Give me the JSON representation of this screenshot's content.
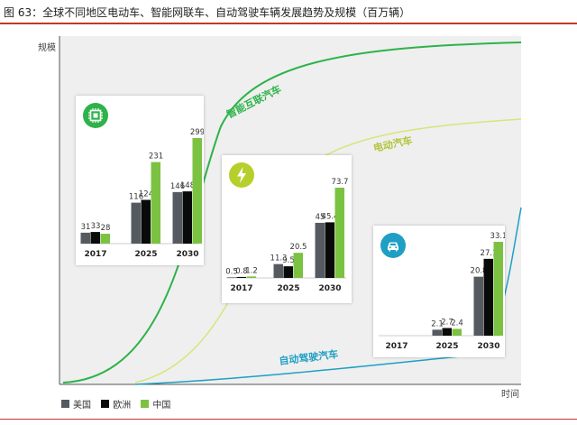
{
  "figure_title": "图 63：全球不同地区电动车、智能网联车、自动驾驶车辆发展趋势及规模（百万辆）",
  "chart_data": {
    "type": "bar",
    "ylabel": "规模",
    "xlabel": "时间",
    "curves": [
      {
        "name": "智能互联汽车",
        "color": "#2db34a"
      },
      {
        "name": "电动汽车",
        "color": "#c9dc4a"
      },
      {
        "name": "自动驾驶汽车",
        "color": "#1f9fc4"
      }
    ],
    "legend": [
      {
        "name": "美国",
        "color": "#555a61"
      },
      {
        "name": "欧洲",
        "color": "#0a0a0a"
      },
      {
        "name": "中国",
        "color": "#7cc242"
      }
    ],
    "panels": [
      {
        "icon": "chip-icon",
        "icon_color": "#2db34a",
        "categories": [
          "2017",
          "2025",
          "2030"
        ],
        "series": [
          {
            "name": "美国",
            "values": [
              31,
              116,
              146
            ]
          },
          {
            "name": "欧洲",
            "values": [
              33,
              124,
              148
            ]
          },
          {
            "name": "中国",
            "values": [
              28,
              231,
              299
            ]
          }
        ]
      },
      {
        "icon": "lightning-icon",
        "icon_color": "#b6cf2a",
        "categories": [
          "2017",
          "2025",
          "2030"
        ],
        "series": [
          {
            "name": "美国",
            "values": [
              0.5,
              11.3,
              45.0
            ]
          },
          {
            "name": "欧洲",
            "values": [
              0.8,
              9.5,
              45.4
            ]
          },
          {
            "name": "中国",
            "values": [
              1.2,
              20.5,
              73.7
            ]
          }
        ]
      },
      {
        "icon": "car-icon",
        "icon_color": "#1f9fc4",
        "categories": [
          "2017",
          "2025",
          "2030"
        ],
        "series": [
          {
            "name": "美国",
            "values": [
              null,
              2.1,
              20.8
            ]
          },
          {
            "name": "欧洲",
            "values": [
              null,
              2.7,
              27.1
            ]
          },
          {
            "name": "中国",
            "values": [
              null,
              2.4,
              33.1
            ]
          }
        ]
      }
    ]
  }
}
